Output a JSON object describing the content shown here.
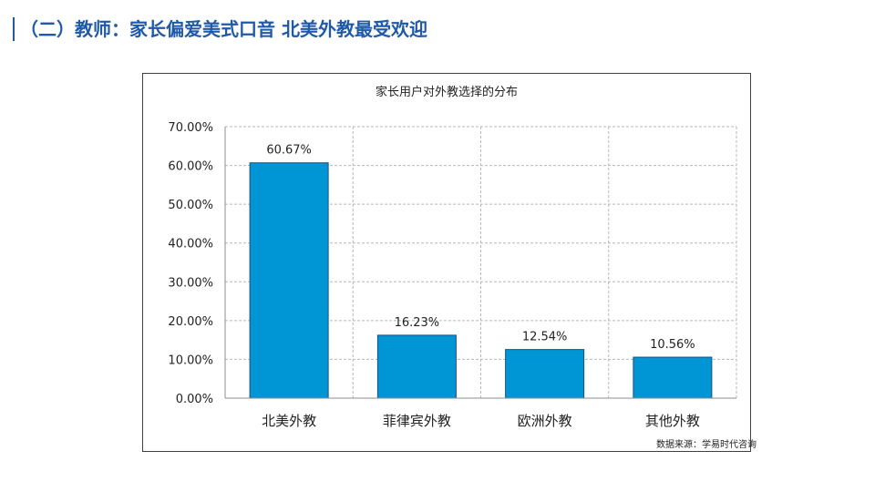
{
  "slide": {
    "title": "（二）教师：家长偏爱美式口音  北美外教最受欢迎"
  },
  "colors": {
    "accent": "#1f5aa8",
    "bar_fill": "#0096d6",
    "bar_stroke": "#1d4f7a",
    "grid": "#b7b7b7"
  },
  "chart_data": {
    "type": "bar",
    "title": "家长用户对外教选择的分布",
    "categories": [
      "北美外教",
      "菲律宾外教",
      "欧洲外教",
      "其他外教"
    ],
    "values": [
      60.67,
      16.23,
      12.54,
      10.56
    ],
    "data_labels": [
      "60.67%",
      "16.23%",
      "12.54%",
      "10.56%"
    ],
    "ylim": [
      0,
      70
    ],
    "yticks": [
      0,
      10,
      20,
      30,
      40,
      50,
      60,
      70
    ],
    "ytick_labels": [
      "0.00%",
      "10.00%",
      "20.00%",
      "30.00%",
      "40.00%",
      "50.00%",
      "60.00%",
      "70.00%"
    ],
    "grid": true,
    "legend": "none"
  },
  "source_note": "数据来源：学易时代咨询"
}
